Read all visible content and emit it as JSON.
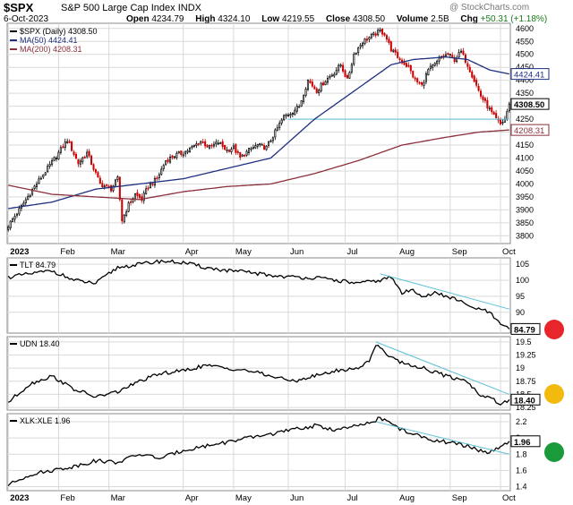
{
  "header": {
    "symbol": "$SPX",
    "name": "S&P 500 Large Cap Index",
    "exchange": "INDX",
    "date": "6-Oct-2023",
    "watermark": "@ StockCharts.com",
    "open_label": "Open",
    "open": "4234.79",
    "high_label": "High",
    "high": "4324.10",
    "low_label": "Low",
    "low": "4219.55",
    "close_label": "Close",
    "close": "4308.50",
    "volume_label": "Volume",
    "volume": "2.5B",
    "chg_label": "Chg",
    "chg": "+50.31 (+1.18%)",
    "chg_color": "#1a7a1a"
  },
  "colors": {
    "up": "#000000",
    "down": "#cc0000",
    "ma50": "#1f2f80",
    "ma200": "#8b2f3a",
    "trendline": "#5bc0d6",
    "grid": "#d9d9d9",
    "axis": "#888888"
  },
  "signals": [
    {
      "panel": "TLT",
      "color": "#e8252b"
    },
    {
      "panel": "UDN",
      "color": "#f2b90f"
    },
    {
      "panel": "XLK:XLE",
      "color": "#1a9a3a"
    }
  ],
  "chart_data": [
    {
      "type": "candlestick",
      "legend": [
        "$SPX (Daily) 4308.50",
        "MA(50) 4424.41",
        "MA(200) 4208.31"
      ],
      "x_labels": [
        "2023",
        "Feb",
        "Mar",
        "Apr",
        "May",
        "Jun",
        "Jul",
        "Aug",
        "Sep",
        "Oct"
      ],
      "x_label_pos": [
        0,
        23,
        46,
        80,
        103,
        128,
        154,
        178,
        202,
        225
      ],
      "n": 230,
      "ylim": [
        3770,
        4620
      ],
      "y_ticks": [
        3800,
        3850,
        3900,
        3950,
        4000,
        4050,
        4100,
        4150,
        4200,
        4250,
        4300,
        4350,
        4400,
        4450,
        4500,
        4550,
        4600
      ],
      "anchors": [
        [
          0,
          3840
        ],
        [
          5,
          3900
        ],
        [
          12,
          3990
        ],
        [
          18,
          4060
        ],
        [
          23,
          4120
        ],
        [
          27,
          4170
        ],
        [
          32,
          4080
        ],
        [
          36,
          4120
        ],
        [
          42,
          4000
        ],
        [
          47,
          3980
        ],
        [
          50,
          4020
        ],
        [
          52,
          3860
        ],
        [
          55,
          3920
        ],
        [
          58,
          3960
        ],
        [
          61,
          3940
        ],
        [
          64,
          3990
        ],
        [
          68,
          4020
        ],
        [
          72,
          4090
        ],
        [
          76,
          4110
        ],
        [
          80,
          4120
        ],
        [
          84,
          4140
        ],
        [
          88,
          4165
        ],
        [
          92,
          4140
        ],
        [
          96,
          4160
        ],
        [
          100,
          4130
        ],
        [
          103,
          4140
        ],
        [
          106,
          4100
        ],
        [
          110,
          4130
        ],
        [
          114,
          4150
        ],
        [
          118,
          4140
        ],
        [
          122,
          4200
        ],
        [
          126,
          4260
        ],
        [
          130,
          4280
        ],
        [
          133,
          4300
        ],
        [
          137,
          4400
        ],
        [
          141,
          4360
        ],
        [
          145,
          4400
        ],
        [
          149,
          4430
        ],
        [
          152,
          4460
        ],
        [
          155,
          4400
        ],
        [
          158,
          4500
        ],
        [
          162,
          4550
        ],
        [
          166,
          4570
        ],
        [
          170,
          4590
        ],
        [
          172,
          4580
        ],
        [
          175,
          4520
        ],
        [
          179,
          4480
        ],
        [
          183,
          4450
        ],
        [
          186,
          4400
        ],
        [
          189,
          4380
        ],
        [
          192,
          4440
        ],
        [
          195,
          4460
        ],
        [
          198,
          4490
        ],
        [
          201,
          4500
        ],
        [
          204,
          4480
        ],
        [
          207,
          4510
        ],
        [
          210,
          4460
        ],
        [
          213,
          4400
        ],
        [
          216,
          4340
        ],
        [
          219,
          4300
        ],
        [
          222,
          4260
        ],
        [
          225,
          4230
        ],
        [
          227,
          4250
        ],
        [
          229,
          4308.5
        ]
      ],
      "ma50_anchors": [
        [
          0,
          3905
        ],
        [
          20,
          3930
        ],
        [
          40,
          3980
        ],
        [
          60,
          4000
        ],
        [
          80,
          4020
        ],
        [
          100,
          4060
        ],
        [
          120,
          4100
        ],
        [
          140,
          4250
        ],
        [
          160,
          4370
        ],
        [
          175,
          4460
        ],
        [
          185,
          4480
        ],
        [
          200,
          4490
        ],
        [
          210,
          4480
        ],
        [
          220,
          4440
        ],
        [
          229,
          4424.41
        ]
      ],
      "ma200_anchors": [
        [
          0,
          3995
        ],
        [
          20,
          3960
        ],
        [
          40,
          3950
        ],
        [
          60,
          3940
        ],
        [
          80,
          3970
        ],
        [
          100,
          3990
        ],
        [
          120,
          4000
        ],
        [
          140,
          4040
        ],
        [
          160,
          4090
        ],
        [
          180,
          4150
        ],
        [
          200,
          4180
        ],
        [
          215,
          4200
        ],
        [
          229,
          4208.31
        ]
      ],
      "horizontal_line": {
        "value": 4250,
        "from": 128,
        "to": 229
      },
      "price_labels": {
        "ma50": "4424.41",
        "close": "4308.50",
        "ma200": "4208.31"
      }
    },
    {
      "type": "line",
      "legend": "TLT 84.79",
      "last": "84.79",
      "ylim": [
        83.5,
        107
      ],
      "y_ticks": [
        90,
        95,
        100,
        105
      ],
      "anchors": [
        [
          0,
          101
        ],
        [
          10,
          102
        ],
        [
          20,
          103
        ],
        [
          30,
          100
        ],
        [
          40,
          99
        ],
        [
          50,
          104
        ],
        [
          60,
          105
        ],
        [
          70,
          106
        ],
        [
          80,
          105.5
        ],
        [
          90,
          104
        ],
        [
          100,
          103
        ],
        [
          110,
          102.5
        ],
        [
          120,
          101.5
        ],
        [
          130,
          101
        ],
        [
          140,
          100.8
        ],
        [
          150,
          100
        ],
        [
          160,
          99
        ],
        [
          170,
          100
        ],
        [
          175,
          101
        ],
        [
          180,
          96
        ],
        [
          185,
          97
        ],
        [
          190,
          95
        ],
        [
          195,
          96
        ],
        [
          200,
          95
        ],
        [
          205,
          94
        ],
        [
          210,
          92
        ],
        [
          215,
          91
        ],
        [
          220,
          90
        ],
        [
          225,
          86
        ],
        [
          229,
          84.79
        ]
      ],
      "trendline": {
        "from": [
          170,
          102
        ],
        "to": [
          229,
          91
        ]
      }
    },
    {
      "type": "line",
      "legend": "UDN 18.40",
      "last": "18.40",
      "ylim": [
        18.2,
        19.6
      ],
      "y_ticks": [
        18.25,
        18.5,
        18.75,
        19,
        19.25,
        19.5
      ],
      "anchors": [
        [
          0,
          18.35
        ],
        [
          10,
          18.7
        ],
        [
          20,
          18.85
        ],
        [
          30,
          18.6
        ],
        [
          40,
          18.45
        ],
        [
          50,
          18.55
        ],
        [
          60,
          18.75
        ],
        [
          70,
          18.9
        ],
        [
          80,
          18.95
        ],
        [
          90,
          19.05
        ],
        [
          100,
          19.0
        ],
        [
          110,
          18.95
        ],
        [
          120,
          18.85
        ],
        [
          130,
          18.75
        ],
        [
          140,
          18.85
        ],
        [
          150,
          18.95
        ],
        [
          160,
          19.0
        ],
        [
          165,
          19.15
        ],
        [
          168,
          19.45
        ],
        [
          172,
          19.3
        ],
        [
          180,
          19.1
        ],
        [
          190,
          19.0
        ],
        [
          200,
          18.85
        ],
        [
          210,
          18.75
        ],
        [
          215,
          18.5
        ],
        [
          220,
          18.45
        ],
        [
          225,
          18.3
        ],
        [
          229,
          18.4
        ]
      ],
      "trendline": {
        "from": [
          168,
          19.5
        ],
        "to": [
          229,
          18.5
        ]
      }
    },
    {
      "type": "line",
      "legend": "XLK:XLE 1.96",
      "last": "1.96",
      "ylim": [
        1.35,
        2.3
      ],
      "y_ticks": [
        1.4,
        1.6,
        1.8,
        2.0,
        2.2
      ],
      "anchors": [
        [
          0,
          1.42
        ],
        [
          10,
          1.55
        ],
        [
          20,
          1.6
        ],
        [
          30,
          1.65
        ],
        [
          40,
          1.72
        ],
        [
          50,
          1.7
        ],
        [
          60,
          1.8
        ],
        [
          70,
          1.75
        ],
        [
          80,
          1.85
        ],
        [
          90,
          1.9
        ],
        [
          100,
          1.95
        ],
        [
          110,
          2.0
        ],
        [
          120,
          2.05
        ],
        [
          130,
          2.1
        ],
        [
          140,
          2.15
        ],
        [
          150,
          2.1
        ],
        [
          160,
          2.15
        ],
        [
          165,
          2.18
        ],
        [
          170,
          2.25
        ],
        [
          180,
          2.1
        ],
        [
          190,
          2.0
        ],
        [
          200,
          1.95
        ],
        [
          210,
          1.9
        ],
        [
          215,
          1.85
        ],
        [
          220,
          1.82
        ],
        [
          225,
          1.88
        ],
        [
          229,
          1.96
        ]
      ],
      "trendline": {
        "from": [
          168,
          2.2
        ],
        "to": [
          229,
          1.8
        ]
      }
    }
  ]
}
